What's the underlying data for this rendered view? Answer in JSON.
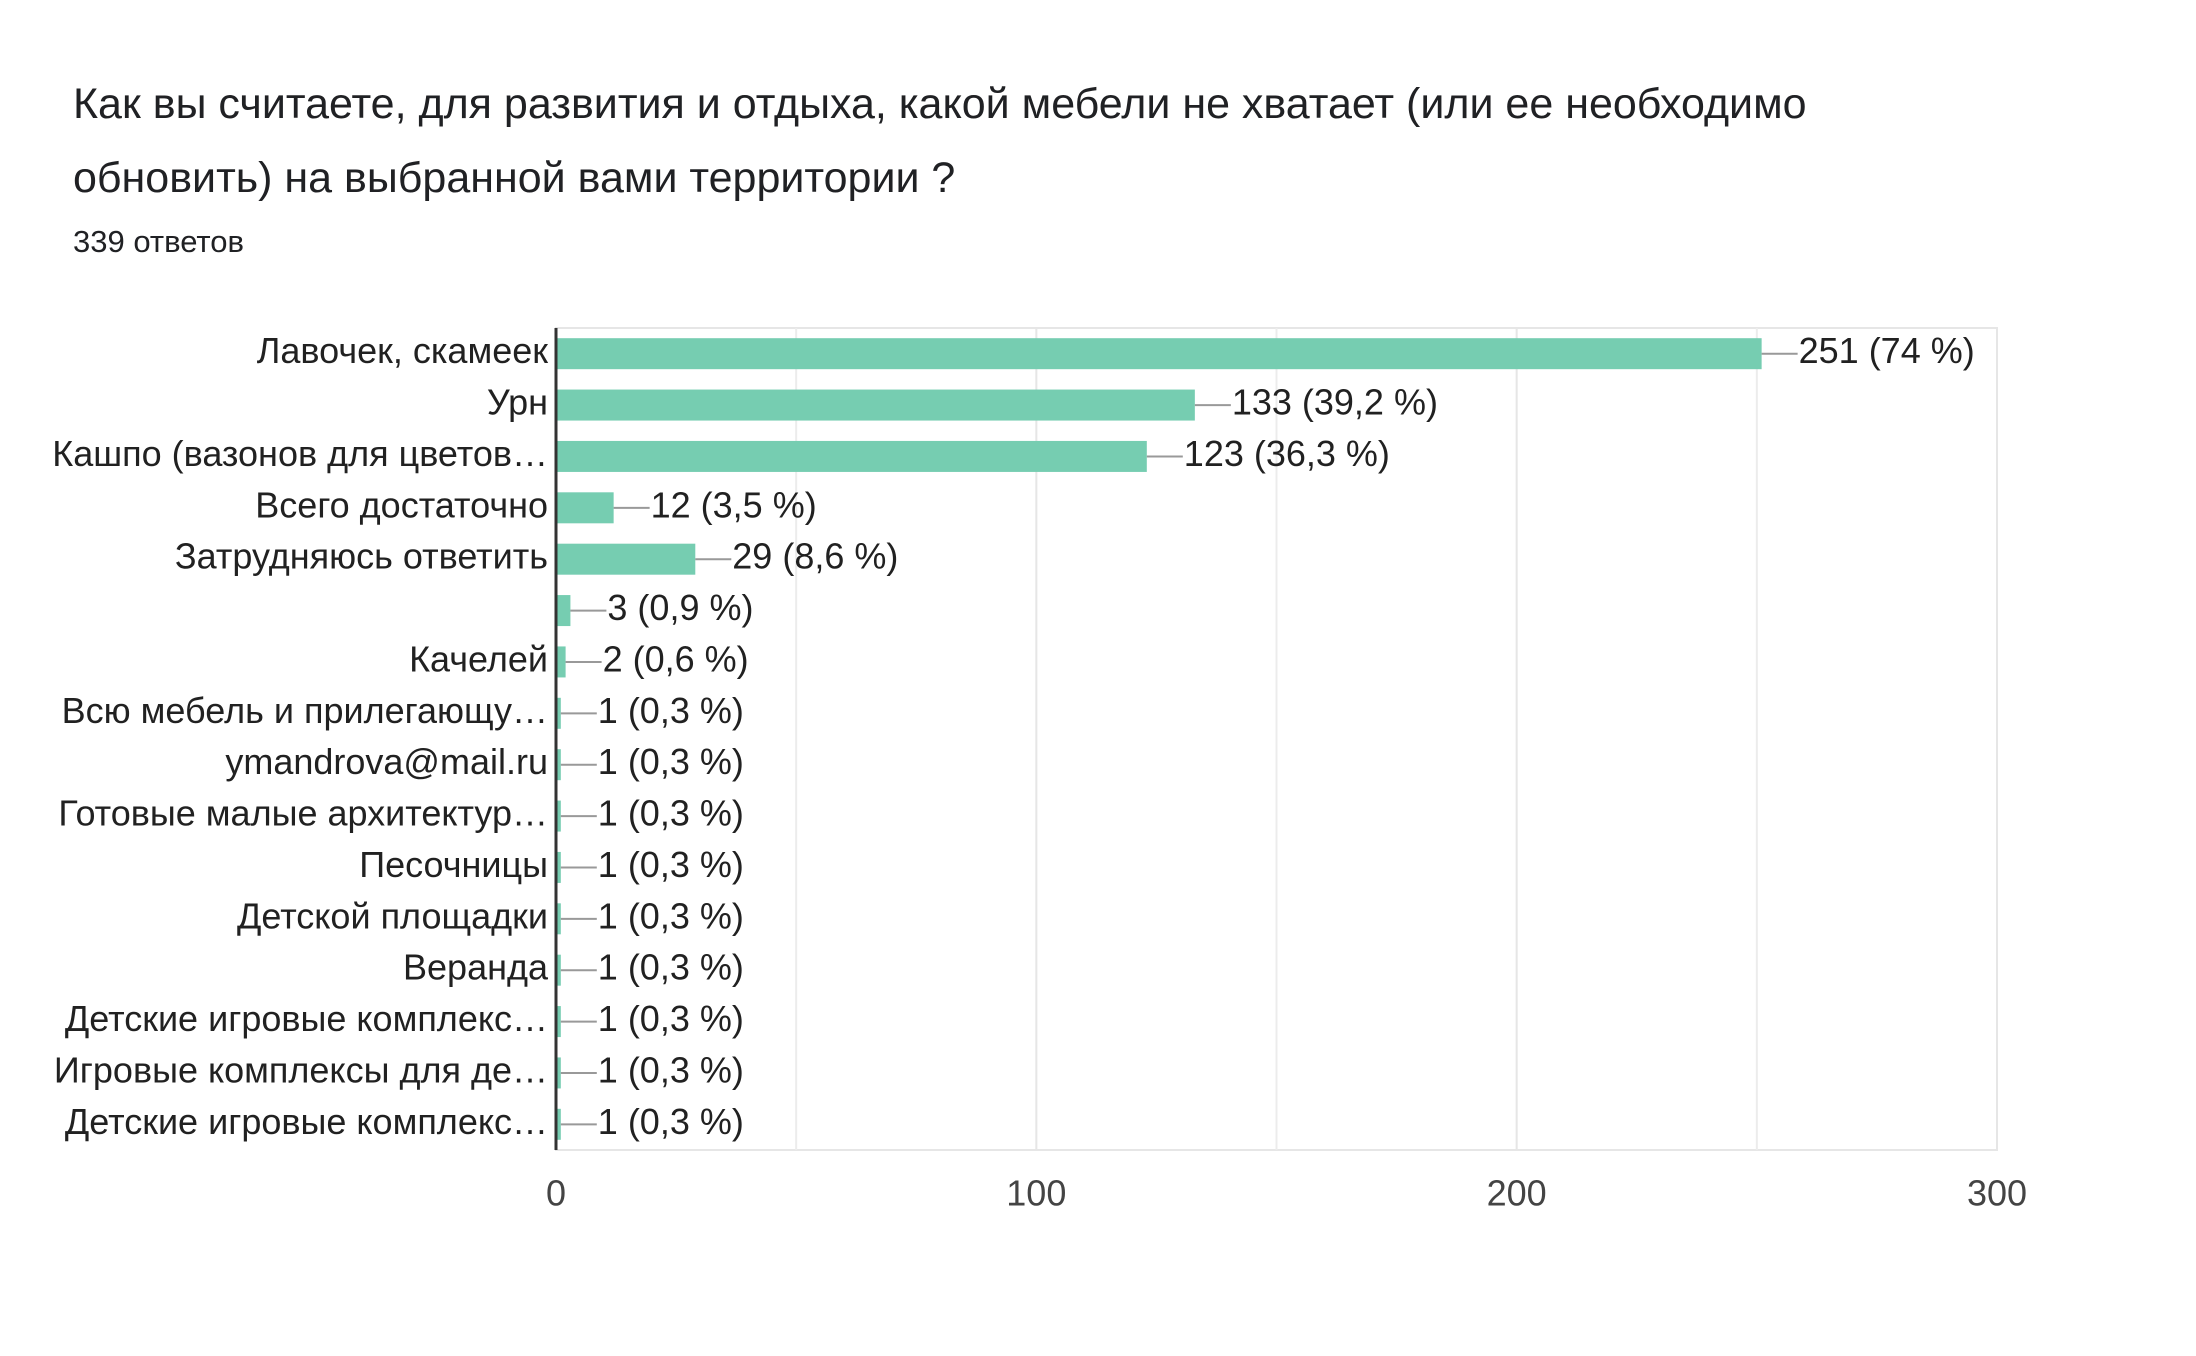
{
  "chart_data": {
    "type": "bar",
    "orientation": "horizontal",
    "title": [
      "Как вы считаете, для развития и отдыха, какой мебели не хватает (или ее необходимо",
      "обновить) на выбранной вами территории ?"
    ],
    "subtitle": "339 ответов",
    "categories": [
      "Лавочек, скамеек",
      "Урн",
      "Кашпо (вазонов для цветов…",
      "Всего достаточно",
      "Затрудняюсь ответить",
      null,
      "Качелей",
      "Всю мебель и прилегающу…",
      "ymandrova@mail.ru",
      "Готовые малые архитектур…",
      "Песочницы",
      "Детской площадки",
      "Веранда",
      "Детские игровые комплекс…",
      "Игровые комплексы для де…",
      "Детские игровые комплекс…"
    ],
    "values": [
      251,
      133,
      123,
      12,
      29,
      3,
      2,
      1,
      1,
      1,
      1,
      1,
      1,
      1,
      1,
      1
    ],
    "value_labels": [
      "251 (74 %)",
      "133 (39,2 %)",
      "123 (36,3 %)",
      "12 (3,5 %)",
      "29 (8,6 %)",
      "3 (0,9 %)",
      "2 (0,6 %)",
      "1 (0,3 %)",
      "1 (0,3 %)",
      "1 (0,3 %)",
      "1 (0,3 %)",
      "1 (0,3 %)",
      "1 (0,3 %)",
      "1 (0,3 %)",
      "1 (0,3 %)",
      "1 (0,3 %)"
    ],
    "color": "#76cdb1",
    "xlim": [
      0,
      300
    ],
    "xticks": [
      0,
      100,
      200,
      300
    ],
    "xminorgrid": [
      50,
      150,
      250
    ],
    "grid": true
  }
}
